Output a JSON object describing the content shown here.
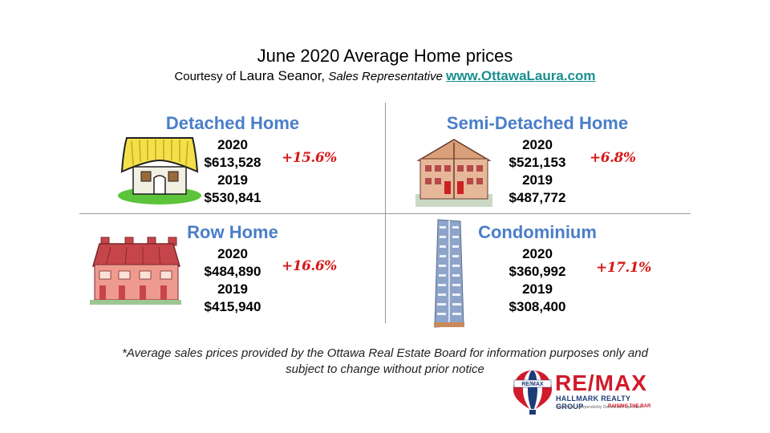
{
  "header": {
    "title": "June 2020 Average Home prices",
    "courtesy_prefix": "Courtesy of",
    "agent_name": "Laura Seanor,",
    "agent_role": "Sales Representative",
    "website": "www.OttawaLaura.com"
  },
  "quadrants": [
    {
      "title": "Detached Home",
      "year_current": "2020",
      "price_current": "$613,528",
      "year_previous": "2019",
      "price_previous": "$530,841",
      "change": "+15.6%",
      "icon": "detached-house-icon"
    },
    {
      "title": "Semi-Detached Home",
      "year_current": "2020",
      "price_current": "$521,153",
      "year_previous": "2019",
      "price_previous": "$487,772",
      "change": "+6.8%",
      "icon": "semi-detached-house-icon"
    },
    {
      "title": "Row Home",
      "year_current": "2020",
      "price_current": "$484,890",
      "year_previous": "2019",
      "price_previous": "$415,940",
      "change": "+16.6%",
      "icon": "row-houses-icon"
    },
    {
      "title": "Condominium",
      "year_current": "2020",
      "price_current": "$360,992",
      "year_previous": "2019",
      "price_previous": "$308,400",
      "change": "+17.1%",
      "icon": "condo-tower-icon"
    }
  ],
  "footnote": {
    "line1": "*Average sales prices provided by the Ottawa Real Estate Board for information purposes only and",
    "line2": "subject to change without prior notice"
  },
  "logo": {
    "balloon_text": "RE/MAX",
    "brand": "RE/MAX",
    "subtitle": "HALLMARK REALTY GROUP",
    "tagline_small": "Brokerage. Independently Owned and Operated",
    "tagline": "RAISING THE BAR"
  },
  "colors": {
    "heading_blue": "#4a7ec9",
    "change_red": "#d81818",
    "link_teal": "#1a8f8f",
    "remax_red": "#d11a2a",
    "remax_blue": "#1e3c78"
  }
}
